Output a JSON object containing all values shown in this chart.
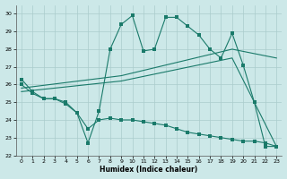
{
  "xlabel": "Humidex (Indice chaleur)",
  "background_color": "#cce8e8",
  "grid_color": "#aacccc",
  "line_color": "#1a7a6a",
  "xlim": [
    -0.5,
    23.5
  ],
  "ylim": [
    22,
    30.5
  ],
  "yticks": [
    22,
    23,
    24,
    25,
    26,
    27,
    28,
    29,
    30
  ],
  "xticks": [
    0,
    1,
    2,
    3,
    4,
    5,
    6,
    7,
    8,
    9,
    10,
    11,
    12,
    13,
    14,
    15,
    16,
    17,
    18,
    19,
    20,
    21,
    22,
    23
  ],
  "line1_x": [
    0,
    1,
    2,
    3,
    4,
    5,
    6,
    7,
    8,
    9,
    10,
    11,
    12,
    13,
    14,
    15,
    16,
    17,
    18,
    19,
    20,
    21,
    22,
    23
  ],
  "line1_y": [
    26.3,
    25.6,
    25.2,
    25.2,
    24.9,
    24.4,
    22.7,
    24.5,
    28.0,
    29.4,
    29.9,
    27.9,
    28.0,
    29.8,
    29.8,
    29.3,
    28.8,
    28.0,
    27.5,
    28.9,
    27.1,
    25.0,
    22.5,
    22.5
  ],
  "line2_x": [
    0,
    1,
    2,
    3,
    4,
    5,
    6,
    7,
    8,
    9,
    10,
    11,
    12,
    13,
    14,
    15,
    16,
    17,
    18,
    19,
    20,
    21,
    22,
    23
  ],
  "line2_y": [
    26.0,
    25.5,
    25.2,
    25.2,
    25.0,
    24.4,
    23.5,
    24.0,
    24.1,
    24.0,
    24.0,
    23.9,
    23.8,
    23.7,
    23.5,
    23.3,
    23.2,
    23.1,
    23.0,
    22.9,
    22.8,
    22.8,
    22.7,
    22.5
  ],
  "line3_x": [
    0,
    9,
    19,
    23
  ],
  "line3_y": [
    25.8,
    26.5,
    28.0,
    27.5
  ],
  "line4_x": [
    0,
    9,
    19,
    23
  ],
  "line4_y": [
    25.6,
    26.2,
    27.5,
    22.5
  ]
}
